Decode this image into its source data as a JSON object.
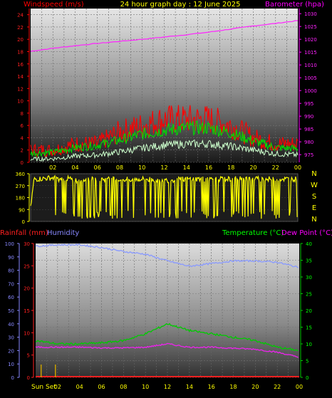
{
  "title": "24 hour graph day : 12 June 2025",
  "colors": {
    "wind": "#ff0000",
    "gust": "#00dd00",
    "wind_avg": "#ccffcc",
    "baro": "#ff22ff",
    "dir": "#ffff00",
    "rain": "#ff2020",
    "humidity": "#8899ff",
    "temp": "#00cc00",
    "dew": "#ee22ee",
    "label_red": "#ff0000",
    "label_green": "#00ff00",
    "label_magenta": "#ff00ff",
    "label_blue": "#8888ff",
    "axis_text": "#ffff00"
  },
  "chart_data": [
    {
      "type": "line",
      "name": "wind-and-barometer",
      "left_label": "Windspeed (m/s)",
      "right_label": "Barometer (hpa)",
      "x_ticks": [
        "02",
        "04",
        "06",
        "08",
        "10",
        "12",
        "14",
        "16",
        "18",
        "20",
        "22",
        "00"
      ],
      "y_left_ticks": [
        0,
        2,
        4,
        6,
        8,
        10,
        12,
        14,
        16,
        18,
        20,
        22,
        24
      ],
      "y_left_range": [
        0,
        25
      ],
      "y_right_ticks": [
        975,
        980,
        985,
        990,
        995,
        1000,
        1005,
        1010,
        1015,
        1020,
        1025,
        1030
      ],
      "y_right_range": [
        972,
        1032
      ],
      "hours": [
        0,
        2,
        4,
        6,
        8,
        10,
        12,
        14,
        16,
        18,
        20,
        22,
        24
      ],
      "barometer": [
        1015.3,
        1016.5,
        1017.5,
        1018.4,
        1019.2,
        1020,
        1020.9,
        1021.8,
        1022.8,
        1024,
        1025.2,
        1026.2,
        1027.3
      ],
      "gust": [
        2,
        2,
        3,
        3,
        5,
        6,
        7,
        7,
        7,
        6,
        4,
        3,
        3
      ],
      "wind_avg": [
        1.5,
        1.6,
        2.4,
        2.8,
        3.6,
        4.6,
        5.2,
        5.6,
        5.6,
        4.8,
        3.5,
        2.4,
        2.2
      ],
      "wind": [
        0.5,
        0.6,
        1,
        1.2,
        1.7,
        2.3,
        2.8,
        3,
        3,
        2.6,
        2,
        1.4,
        1.2
      ]
    },
    {
      "type": "scatter",
      "name": "wind-direction",
      "y_ticks": [
        0,
        90,
        180,
        270,
        360
      ],
      "y_range": [
        0,
        360
      ],
      "compass": [
        "N",
        "W",
        "S",
        "E",
        "N"
      ],
      "hours": [
        0,
        0.3,
        0.6,
        2,
        2.5,
        3,
        4,
        6,
        8,
        10,
        12,
        14,
        16,
        18,
        20,
        22,
        24
      ],
      "direction": [
        100,
        320,
        320,
        330,
        320,
        330,
        310,
        320,
        315,
        320,
        310,
        320,
        320,
        320,
        320,
        320,
        320
      ]
    },
    {
      "type": "line",
      "name": "rain-humidity-temperature",
      "rain_label": "Rainfall (mm)",
      "humidity_label": "Humidity",
      "temp_label": "Temperature (°C)",
      "dew_label": "Dew Point (°C)",
      "sunset_label": "Sun Set",
      "x_ticks": [
        "02",
        "04",
        "06",
        "08",
        "10",
        "12",
        "14",
        "16",
        "18",
        "20",
        "22",
        "00"
      ],
      "humidity_ticks": [
        0,
        10,
        20,
        30,
        40,
        50,
        60,
        70,
        80,
        90,
        100
      ],
      "rain_ticks": [
        0,
        5,
        10,
        15,
        20,
        25,
        30
      ],
      "temp_ticks": [
        0,
        5,
        10,
        15,
        20,
        25,
        30,
        35,
        40
      ],
      "temp_range": [
        0,
        40
      ],
      "hours": [
        0,
        2,
        4,
        6,
        8,
        10,
        12,
        14,
        16,
        18,
        20,
        22,
        24
      ],
      "humidity": [
        98,
        99,
        99,
        97,
        94,
        92,
        87,
        83,
        85,
        87,
        87,
        86,
        82
      ],
      "temperature": [
        11,
        10,
        10,
        10.3,
        11,
        13,
        16,
        14,
        13,
        12,
        11,
        9,
        8
      ],
      "dew_point": [
        9,
        9,
        9,
        8.8,
        8.8,
        9,
        10,
        9,
        9,
        8.7,
        8.4,
        7.5,
        6
      ],
      "rain": [
        0,
        0,
        0,
        0,
        0,
        0,
        0,
        0,
        0,
        0,
        0,
        0,
        0
      ],
      "rain_ticks_marks": [
        0.5,
        1.8
      ]
    }
  ]
}
